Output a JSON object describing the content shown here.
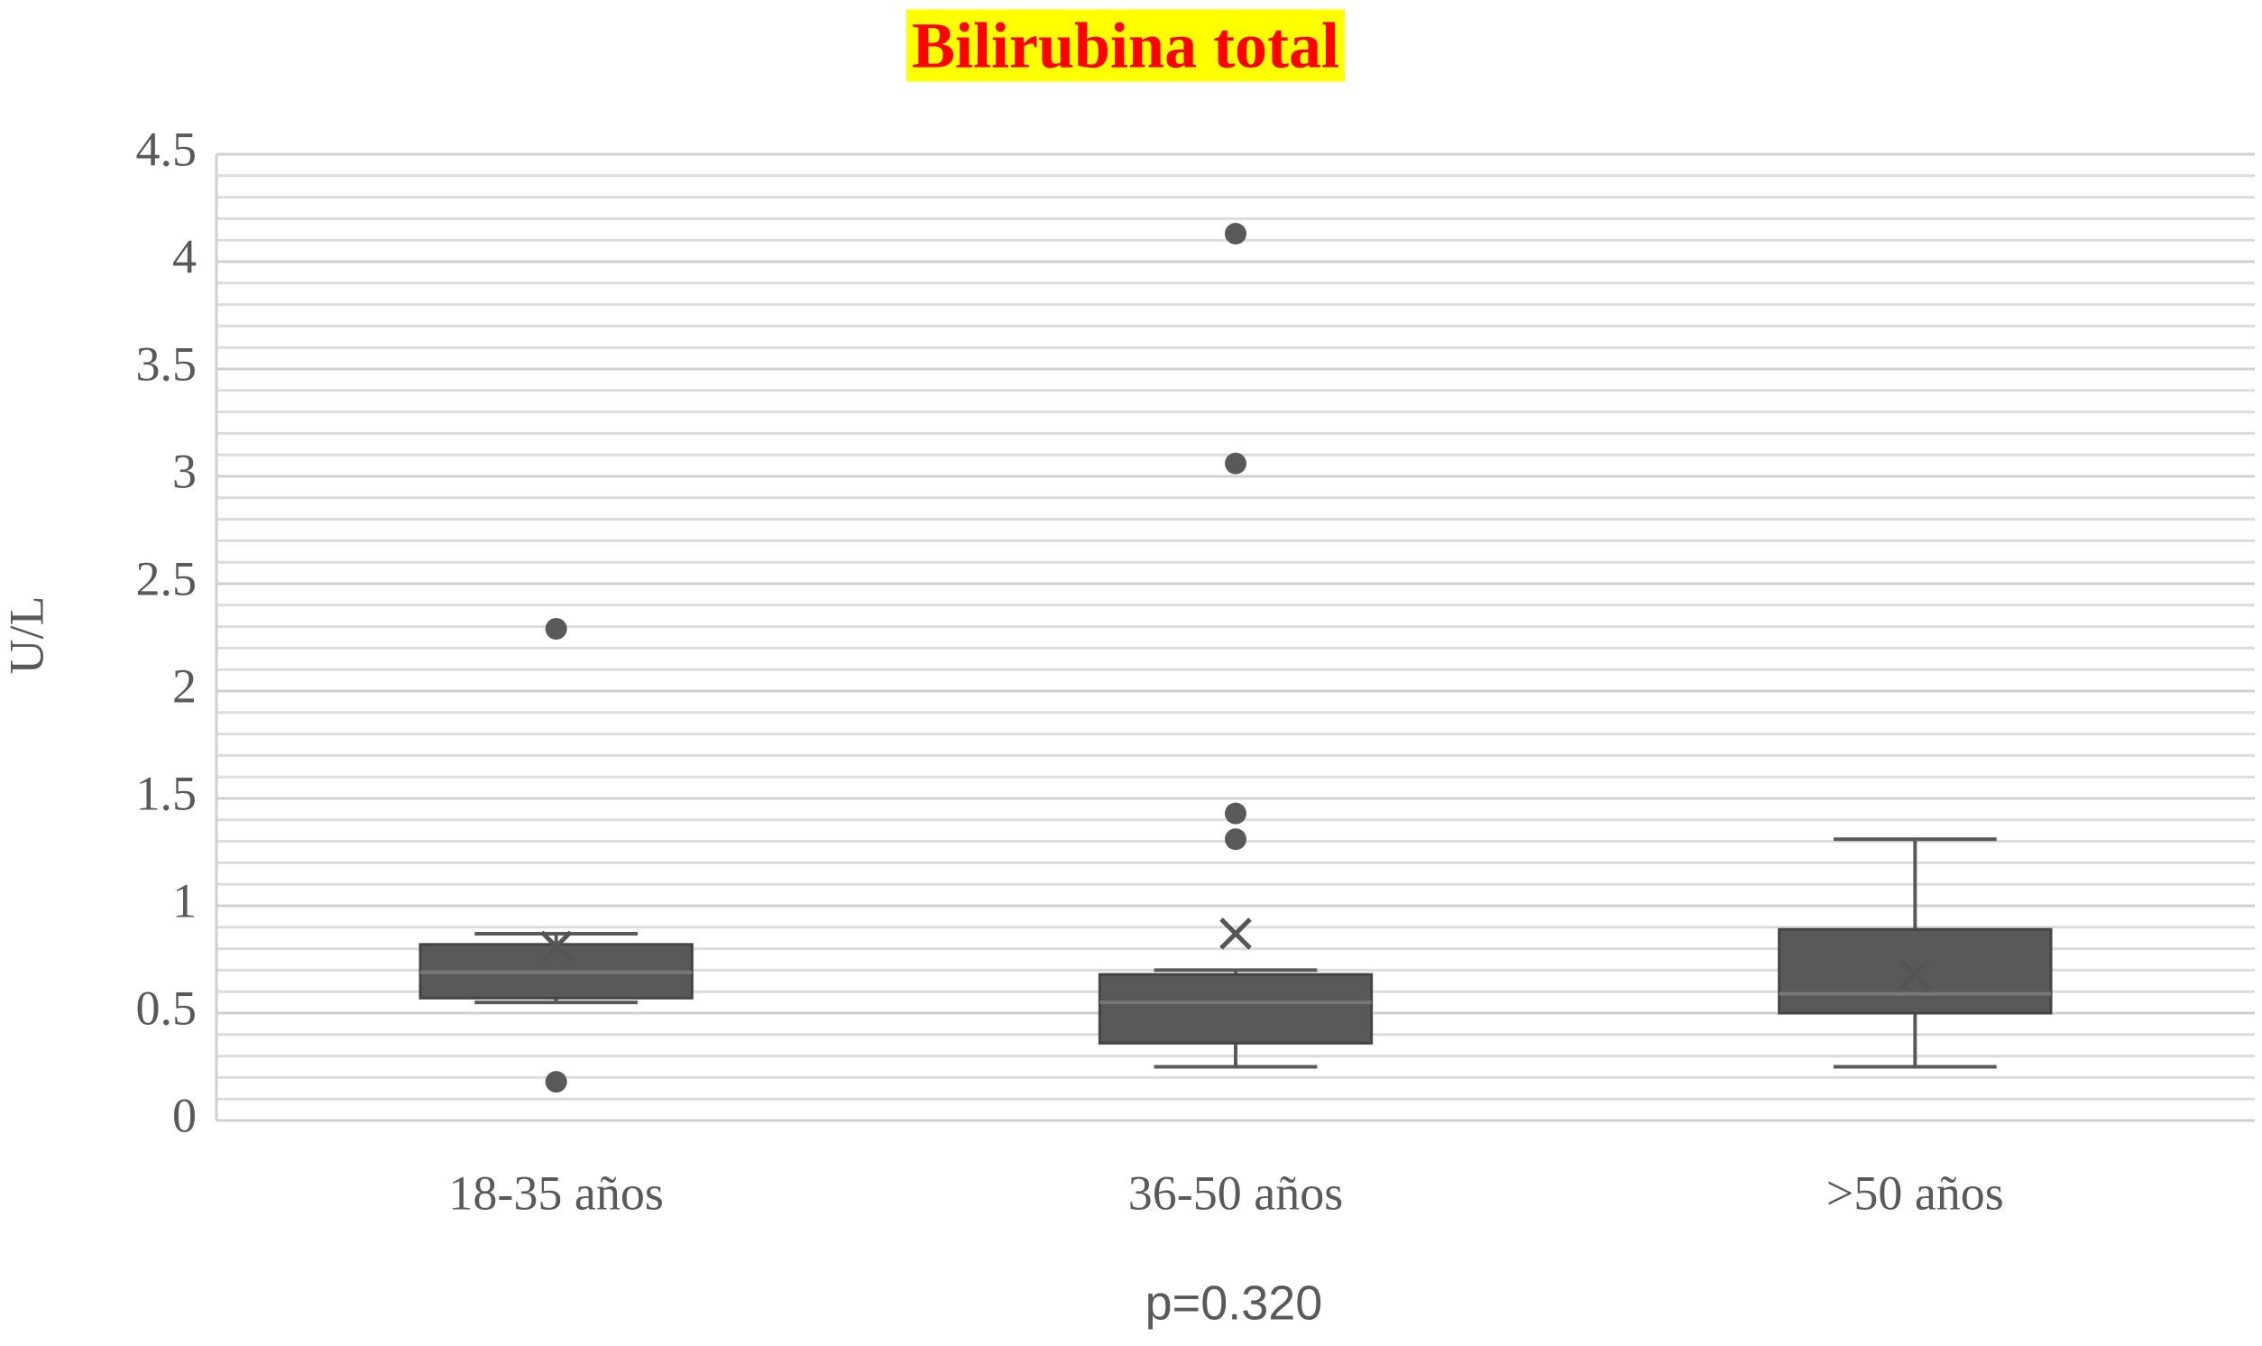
{
  "chart_data": {
    "type": "box",
    "title": "Bilirubina total",
    "y_label": "U/L",
    "x_label": "p=0.320",
    "categories": [
      "18-35 años",
      "36-50 años",
      ">50 años"
    ],
    "color": "#595959",
    "title_color": "#ff0000",
    "title_background": "#ffff00",
    "ylim": [
      0,
      4.5
    ],
    "yticks": [
      0,
      0.5,
      1,
      1.5,
      2,
      2.5,
      3,
      3.5,
      4,
      4.5
    ],
    "grid": true,
    "minor_grid_step": 0.1,
    "boxes": [
      {
        "min": 0.55,
        "q1": 0.57,
        "median": 0.69,
        "q3": 0.82,
        "max": 0.87,
        "mean": 0.81,
        "outliers": [
          2.29,
          0.18
        ]
      },
      {
        "min": 0.25,
        "q1": 0.36,
        "median": 0.55,
        "q3": 0.68,
        "max": 0.7,
        "mean": 0.87,
        "outliers": [
          4.13,
          3.06,
          1.43,
          1.31
        ]
      },
      {
        "min": 0.25,
        "q1": 0.5,
        "median": 0.59,
        "q3": 0.89,
        "max": 1.31,
        "mean": 0.68,
        "outliers": []
      }
    ]
  }
}
